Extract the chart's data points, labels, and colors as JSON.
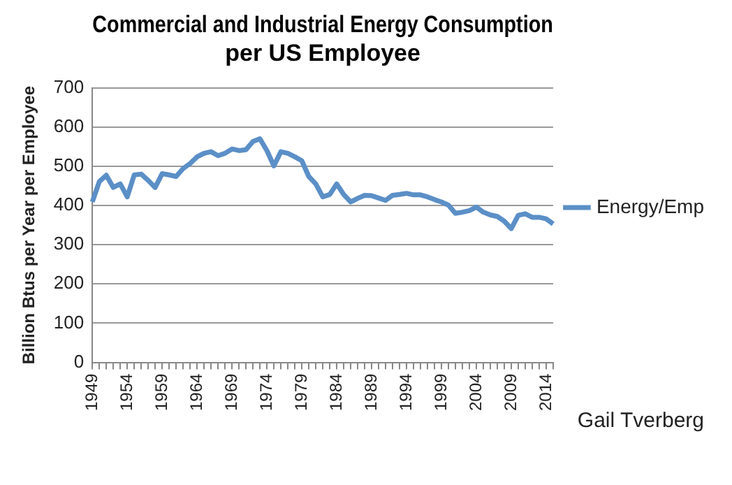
{
  "chart_data": {
    "type": "line",
    "title": "Commercial and Industrial Energy Consumption per US Employee",
    "ylabel": "Billion Btus per Year per Employee",
    "categories": [
      "1949",
      null,
      null,
      null,
      null,
      "1954",
      null,
      null,
      null,
      null,
      "1959",
      null,
      null,
      null,
      null,
      "1964",
      null,
      null,
      null,
      null,
      "1969",
      null,
      null,
      null,
      null,
      "1974",
      null,
      null,
      null,
      null,
      "1979",
      null,
      null,
      null,
      null,
      "1984",
      null,
      null,
      null,
      null,
      "1989",
      null,
      null,
      null,
      null,
      "1994",
      null,
      null,
      null,
      null,
      "1999",
      null,
      null,
      null,
      null,
      "2004",
      null,
      null,
      null,
      null,
      "2009",
      null,
      null,
      null,
      null,
      "2014",
      null
    ],
    "series": [
      {
        "name": "Energy/Emp",
        "color": "#5b8fc7",
        "values": [
          409,
          461,
          477,
          446,
          455,
          422,
          478,
          480,
          464,
          446,
          481,
          478,
          474,
          494,
          507,
          524,
          533,
          537,
          527,
          533,
          544,
          540,
          542,
          563,
          570,
          540,
          501,
          537,
          533,
          524,
          514,
          474,
          455,
          422,
          428,
          455,
          428,
          409,
          418,
          426,
          425,
          419,
          413,
          426,
          428,
          431,
          427,
          427,
          422,
          415,
          409,
          401,
          380,
          383,
          387,
          396,
          383,
          376,
          372,
          360,
          341,
          375,
          379,
          370,
          370,
          366,
          353
        ]
      }
    ],
    "ylim": [
      0,
      700
    ],
    "yticks": [
      0,
      100,
      200,
      300,
      400,
      500,
      600,
      700
    ],
    "grid": "y",
    "legend": "right",
    "marker": "none",
    "line_style": "solid",
    "annotations": [
      "Gail Tverberg"
    ]
  }
}
